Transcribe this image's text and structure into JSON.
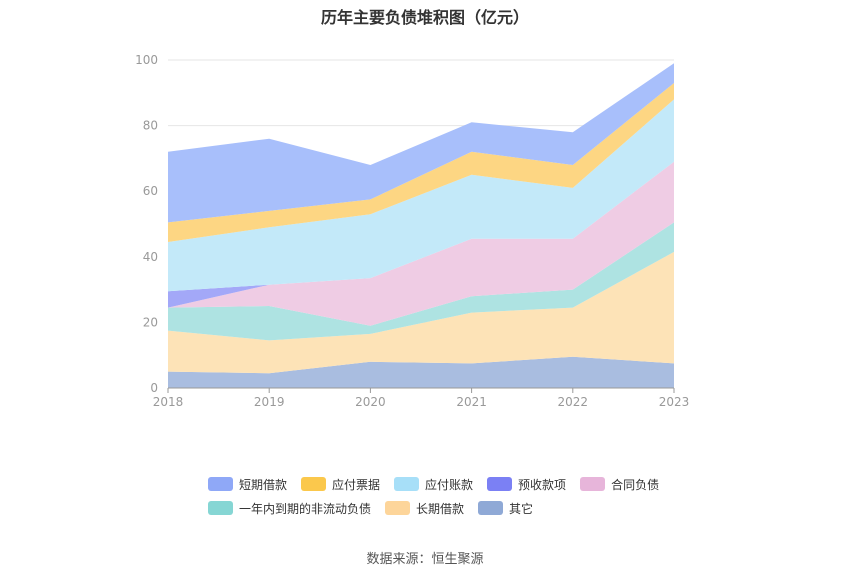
{
  "chart_data": {
    "type": "area",
    "title": "历年主要负债堆积图（亿元）",
    "x": [
      "2018",
      "2019",
      "2020",
      "2021",
      "2022",
      "2023"
    ],
    "ylim": [
      0,
      100
    ],
    "yticks": [
      0,
      20,
      40,
      60,
      80,
      100
    ],
    "stacked": true,
    "grid": true,
    "legend_position": "bottom",
    "series": [
      {
        "name": "其它",
        "color": "#a9bde0",
        "values": [
          5,
          4.5,
          8,
          7.5,
          9.5,
          7.5
        ]
      },
      {
        "name": "长期借款",
        "color": "#fde3b7",
        "values": [
          12.5,
          10,
          8.5,
          15.5,
          15,
          34
        ]
      },
      {
        "name": "一年内到期的非流动负债",
        "color": "#aee3e2",
        "values": [
          7,
          10.5,
          2.5,
          5,
          5.5,
          9
        ]
      },
      {
        "name": "合同负债",
        "color": "#efcce4",
        "values": [
          0,
          6.5,
          14.5,
          17.5,
          15.5,
          18.5
        ]
      },
      {
        "name": "预收款项",
        "color": "#a3a8f8",
        "values": [
          5,
          0,
          0,
          0,
          0,
          0
        ]
      },
      {
        "name": "应付账款",
        "color": "#c3e9f9",
        "values": [
          15,
          17.5,
          19.5,
          19.5,
          15.5,
          19
        ]
      },
      {
        "name": "应付票据",
        "color": "#fdd683",
        "values": [
          6,
          5,
          4.5,
          7,
          7,
          5
        ]
      },
      {
        "name": "短期借款",
        "color": "#a8bffb",
        "values": [
          21.5,
          22,
          10.5,
          9,
          10,
          6
        ]
      }
    ]
  },
  "legend": {
    "row1": [
      {
        "label": "短期借款",
        "color": "#8fa8f7"
      },
      {
        "label": "应付票据",
        "color": "#fbc84c"
      },
      {
        "label": "应付账款",
        "color": "#a7dff8"
      },
      {
        "label": "预收款项",
        "color": "#7b80f4"
      },
      {
        "label": "合同负债",
        "color": "#e7b5da"
      }
    ],
    "row2": [
      {
        "label": "一年内到期的非流动负债",
        "color": "#86d6d4"
      },
      {
        "label": "长期借款",
        "color": "#fdd59a"
      },
      {
        "label": "其它",
        "color": "#8fa9d6"
      }
    ]
  },
  "source": "数据来源：恒生聚源"
}
